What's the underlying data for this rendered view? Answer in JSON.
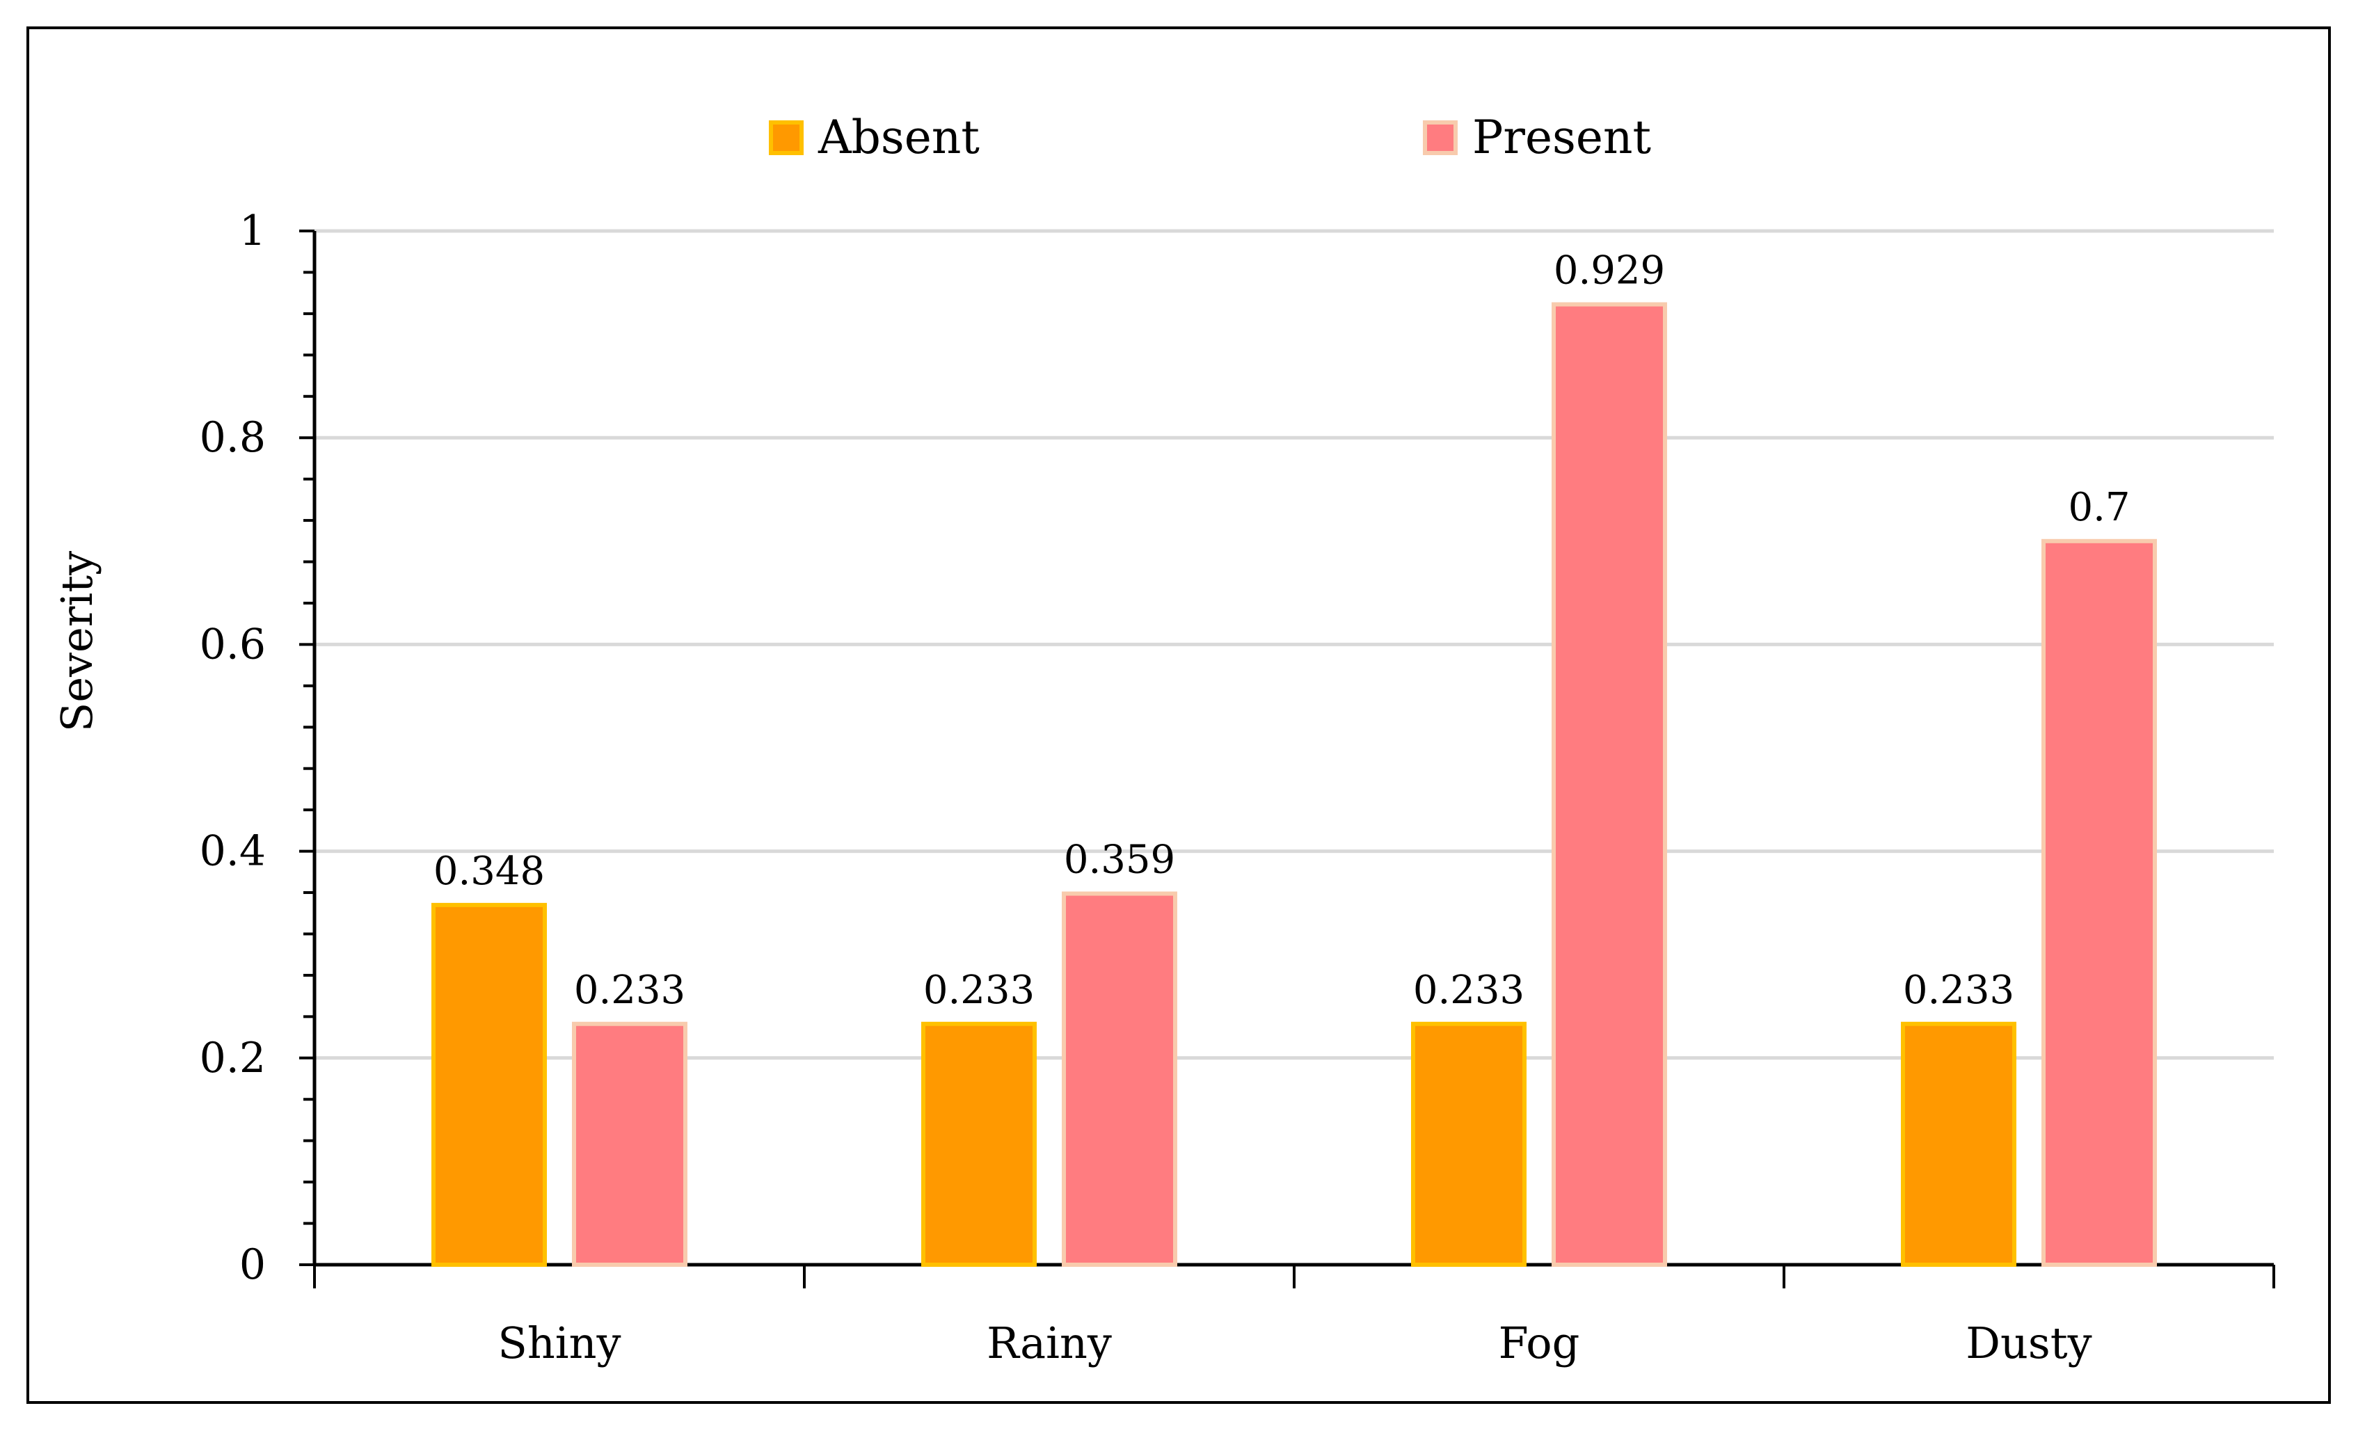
{
  "chart_data": {
    "type": "bar",
    "title": "",
    "xlabel": "",
    "ylabel": "Severity",
    "ylim": [
      0,
      1
    ],
    "yticks": [
      "0",
      "0.2",
      "0.4",
      "0.6",
      "0.8",
      "1"
    ],
    "ytick_values": [
      0,
      0.2,
      0.4,
      0.6,
      0.8,
      1
    ],
    "grid": true,
    "legend_position": "top-center",
    "categories": [
      "Shiny",
      "Rainy",
      "Fog",
      "Dusty"
    ],
    "series": [
      {
        "name": "Absent",
        "values": [
          0.348,
          0.233,
          0.233,
          0.233
        ],
        "labels": [
          "0.348",
          "0.233",
          "0.233",
          "0.233"
        ],
        "fill": "#FF9900",
        "stroke": "#FFC000"
      },
      {
        "name": "Present",
        "values": [
          0.233,
          0.359,
          0.929,
          0.7
        ],
        "labels": [
          "0.233",
          "0.359",
          "0.929",
          "0.7"
        ],
        "fill": "#FF7C80",
        "stroke": "#F8CBAD"
      }
    ]
  }
}
